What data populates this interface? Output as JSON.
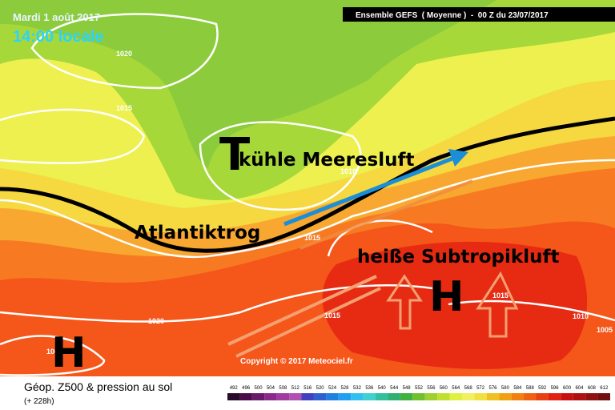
{
  "header": {
    "date": "Mardi 1 août 2017",
    "time": "14:00 locale",
    "model": "Ensemble GEFS  ( Moyenne )  -  00 Z du 23/07/2017"
  },
  "annotations": {
    "low": "T",
    "cool_air": "kühle Meeresluft",
    "trough": "Atlantiktrog",
    "hot_air": "heiße Subtropikluft",
    "high_east": "H",
    "high_west": "H"
  },
  "isobars": [
    "1020",
    "1015",
    "1010",
    "1015",
    "1020",
    "1015",
    "1015",
    "1010",
    "1005",
    "1005"
  ],
  "copyright": "Copyright © 2017 Meteociel.fr",
  "footer": {
    "title": "Géop. Z500 & pression au sol",
    "lead": "(+ 228h)"
  },
  "legend": {
    "levels": [
      492,
      496,
      500,
      504,
      508,
      512,
      516,
      520,
      524,
      528,
      532,
      536,
      540,
      544,
      548,
      552,
      556,
      560,
      564,
      568,
      572,
      576,
      580,
      584,
      588,
      592,
      596,
      600,
      604,
      608,
      612
    ],
    "colors": [
      "#2a0a2a",
      "#4b0a4b",
      "#6a1a6a",
      "#8a2a8a",
      "#a03ca0",
      "#b050b0",
      "#4040c0",
      "#3060d0",
      "#2080e0",
      "#20a0f0",
      "#30c0f0",
      "#40d0d0",
      "#30c0a0",
      "#30b070",
      "#40b040",
      "#70c030",
      "#a0d030",
      "#c0e030",
      "#e0f040",
      "#f0f060",
      "#f0e040",
      "#f0c020",
      "#f0a010",
      "#f08010",
      "#f06010",
      "#e84010",
      "#e02010",
      "#c81010",
      "#b01010",
      "#901010",
      "#701010"
    ]
  }
}
